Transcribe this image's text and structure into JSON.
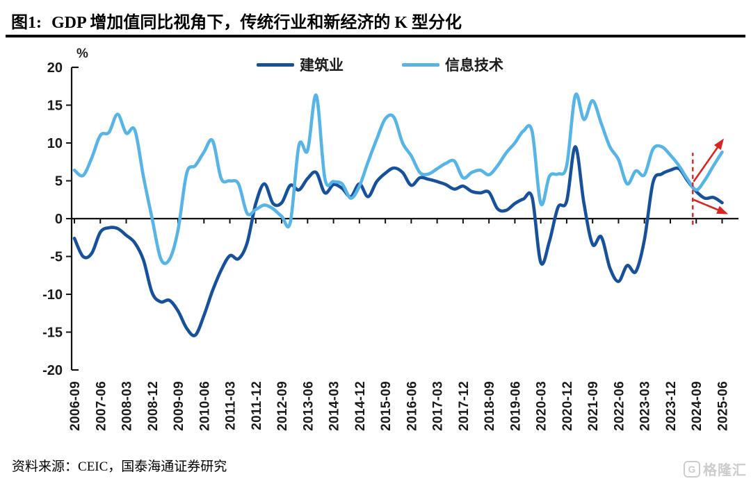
{
  "title": {
    "figure_label": "图1:",
    "text": "GDP 增加值同比视角下，传统行业和新经济的 K 型分化"
  },
  "source": {
    "label": "资料来源：",
    "text": "CEIC，国泰海通证券研究"
  },
  "watermark": {
    "logo": "G",
    "text": "格隆汇"
  },
  "chart_data": {
    "type": "line",
    "unit_label": "%",
    "ylim": [
      -20,
      20
    ],
    "yticks": [
      20,
      15,
      10,
      5,
      0,
      -5,
      -10,
      -15,
      -20
    ],
    "grid": false,
    "legend_position": "top-center",
    "x_label_step": 3,
    "x": [
      "2006-09",
      "2006-12",
      "2007-03",
      "2007-06",
      "2007-09",
      "2007-12",
      "2008-03",
      "2008-06",
      "2008-09",
      "2008-12",
      "2009-03",
      "2009-06",
      "2009-09",
      "2009-12",
      "2010-03",
      "2010-06",
      "2010-09",
      "2010-12",
      "2011-03",
      "2011-06",
      "2011-09",
      "2011-12",
      "2012-03",
      "2012-06",
      "2012-09",
      "2012-12",
      "2013-03",
      "2013-06",
      "2013-09",
      "2013-12",
      "2014-03",
      "2014-06",
      "2014-09",
      "2014-12",
      "2015-03",
      "2015-06",
      "2015-09",
      "2015-12",
      "2016-03",
      "2016-06",
      "2016-09",
      "2016-12",
      "2017-03",
      "2017-06",
      "2017-09",
      "2017-12",
      "2018-03",
      "2018-06",
      "2018-09",
      "2018-12",
      "2019-03",
      "2019-06",
      "2019-09",
      "2019-12",
      "2020-03",
      "2020-06",
      "2020-09",
      "2020-12",
      "2021-03",
      "2021-06",
      "2021-09",
      "2021-12",
      "2022-03",
      "2022-06",
      "2022-09",
      "2022-12",
      "2023-03",
      "2023-06",
      "2023-09",
      "2023-12",
      "2024-03",
      "2024-06",
      "2024-09",
      "2024-12",
      "2025-03",
      "2025-06"
    ],
    "series": [
      {
        "name": "建筑业",
        "color": "#17519b",
        "values": [
          -2.6,
          -5.0,
          -4.6,
          -1.8,
          -1.2,
          -1.3,
          -2.2,
          -3.2,
          -5.5,
          -9.8,
          -11.0,
          -10.8,
          -12.2,
          -14.5,
          -15.4,
          -12.8,
          -9.5,
          -6.8,
          -4.9,
          -5.3,
          -3.2,
          2.0,
          4.6,
          2.0,
          2.1,
          4.4,
          3.8,
          5.3,
          6.1,
          3.4,
          4.5,
          4.0,
          2.9,
          4.6,
          2.9,
          4.9,
          6.0,
          6.7,
          6.1,
          4.4,
          5.4,
          5.2,
          4.9,
          4.5,
          3.9,
          4.3,
          3.6,
          3.4,
          3.5,
          1.3,
          1.1,
          2.0,
          2.6,
          2.8,
          -5.8,
          -3.0,
          1.5,
          2.3,
          9.5,
          2.0,
          -3.4,
          -2.4,
          -6.5,
          -8.3,
          -6.2,
          -7.0,
          -2.8,
          4.8,
          5.9,
          6.4,
          6.6,
          5.0,
          3.6,
          2.7,
          2.8,
          2.1
        ]
      },
      {
        "name": "信息技术",
        "color": "#56b4e6",
        "values": [
          6.4,
          5.7,
          8.0,
          11.0,
          11.4,
          13.8,
          11.3,
          11.7,
          5.5,
          0.0,
          -5.3,
          -5.4,
          -1.5,
          6.0,
          7.0,
          8.8,
          10.3,
          5.3,
          5.0,
          4.6,
          0.7,
          1.2,
          1.8,
          1.3,
          0.3,
          -0.5,
          9.7,
          9.0,
          16.3,
          5.3,
          4.9,
          4.6,
          2.7,
          4.3,
          7.5,
          10.5,
          13.2,
          13.4,
          10.0,
          8.3,
          6.1,
          5.9,
          6.6,
          7.3,
          7.6,
          5.4,
          6.1,
          6.4,
          5.8,
          7.0,
          8.7,
          10.0,
          11.6,
          11.5,
          2.0,
          5.6,
          5.9,
          7.0,
          16.3,
          13.1,
          15.6,
          12.6,
          9.5,
          7.8,
          4.6,
          6.3,
          5.8,
          9.2,
          9.5,
          8.4,
          7.0,
          5.2,
          3.8,
          5.1,
          7.0,
          8.8
        ]
      }
    ],
    "annotations": {
      "color": "#d92420",
      "dashed_vline": {
        "x_index": 71.6,
        "value_from": -0.8,
        "value_to": 8.7
      },
      "arrows": [
        {
          "name": "it-up-arrow",
          "from": [
            71.7,
            4.9
          ],
          "to": [
            75.2,
            10.6
          ]
        },
        {
          "name": "construction-down-arrow",
          "from": [
            71.7,
            2.5
          ],
          "to": [
            75.7,
            0.6
          ]
        }
      ]
    }
  }
}
